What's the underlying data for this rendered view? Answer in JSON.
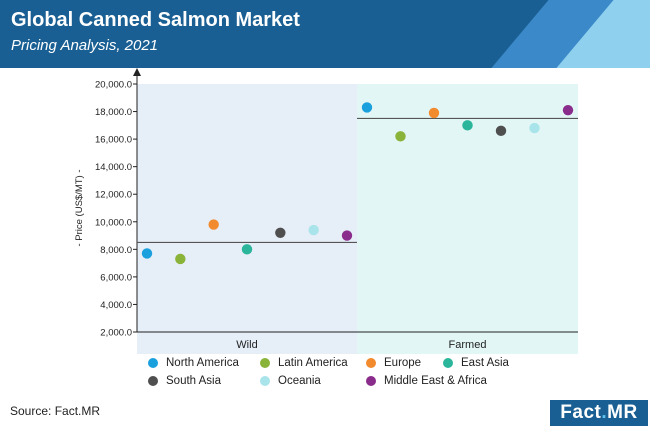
{
  "header": {
    "title": "Global Canned Salmon Market",
    "subtitle": "Pricing Analysis, 2021"
  },
  "colors": {
    "header_bg": "#1a5f93",
    "stripe_mid": "#3b89c9",
    "stripe_light": "#8fd0ee",
    "wild_bg": "#e6eef8",
    "farmed_bg": "#e3f6f6"
  },
  "chart_data": {
    "type": "scatter",
    "ylabel": "- Price (US$/MT) -",
    "ylim": [
      2000,
      20000
    ],
    "yticks": [
      "2,000.0",
      "4,000.0",
      "6,000.0",
      "8,000.0",
      "10,000.0",
      "12,000.0",
      "14,000.0",
      "16,000.0",
      "18,000.0",
      "20,000.0"
    ],
    "categories": [
      "Wild",
      "Farmed"
    ],
    "averages": [
      8500,
      17500
    ],
    "series": [
      {
        "name": "North America",
        "color": "#1aa0dd",
        "values": [
          7700,
          18300
        ]
      },
      {
        "name": "Latin America",
        "color": "#8ab33a",
        "values": [
          7300,
          16200
        ]
      },
      {
        "name": "Europe",
        "color": "#f28a2e",
        "values": [
          9800,
          17900
        ]
      },
      {
        "name": "East Asia",
        "color": "#2bb59a",
        "values": [
          8000,
          17000
        ]
      },
      {
        "name": "South Asia",
        "color": "#4f4f4f",
        "values": [
          9200,
          16600
        ]
      },
      {
        "name": "Oceania",
        "color": "#a8e4ea",
        "values": [
          9400,
          16800
        ]
      },
      {
        "name": "Middle East & Africa",
        "color": "#8a2c8c",
        "values": [
          9000,
          18100
        ]
      }
    ],
    "legend_position": "bottom"
  },
  "source": "Source: Fact.MR",
  "logo": {
    "left": "Fact",
    "sep": ".",
    "right": "MR"
  }
}
